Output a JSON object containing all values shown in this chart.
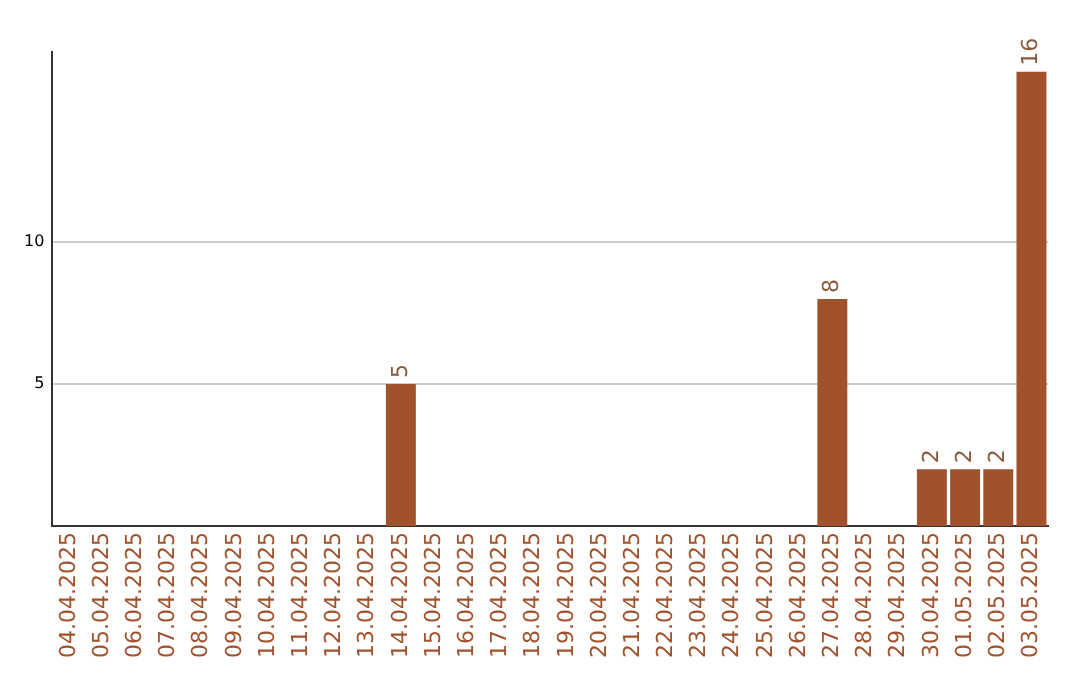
{
  "chart_data": {
    "type": "bar",
    "categories": [
      "04.04.2025",
      "05.04.2025",
      "06.04.2025",
      "07.04.2025",
      "08.04.2025",
      "09.04.2025",
      "10.04.2025",
      "11.04.2025",
      "12.04.2025",
      "13.04.2025",
      "14.04.2025",
      "15.04.2025",
      "16.04.2025",
      "17.04.2025",
      "18.04.2025",
      "19.04.2025",
      "20.04.2025",
      "21.04.2025",
      "22.04.2025",
      "23.04.2025",
      "24.04.2025",
      "25.04.2025",
      "26.04.2025",
      "27.04.2025",
      "28.04.2025",
      "29.04.2025",
      "30.04.2025",
      "01.05.2025",
      "02.05.2025",
      "03.05.2025"
    ],
    "values": [
      0,
      0,
      0,
      0,
      0,
      0,
      0,
      0,
      0,
      0,
      5,
      0,
      0,
      0,
      0,
      0,
      0,
      0,
      0,
      0,
      0,
      0,
      0,
      8,
      0,
      0,
      2,
      2,
      2,
      16
    ],
    "value_labels": [
      null,
      null,
      null,
      null,
      null,
      null,
      null,
      null,
      null,
      null,
      "5",
      null,
      null,
      null,
      null,
      null,
      null,
      null,
      null,
      null,
      null,
      null,
      null,
      "8",
      null,
      null,
      "2",
      "2",
      "2",
      "16"
    ],
    "color": "#a0522d",
    "ylim": [
      0,
      16.7
    ],
    "yticks": [
      5,
      10
    ],
    "grid": "y",
    "legend": false
  }
}
